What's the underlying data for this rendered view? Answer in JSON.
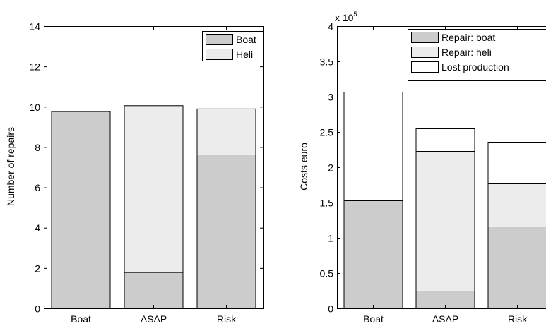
{
  "colors": {
    "boat": "#cccccc",
    "heli": "#ececec",
    "lost": "#ffffff"
  },
  "chart_data": [
    {
      "type": "bar",
      "stacked": true,
      "categories": [
        "Boat",
        "ASAP",
        "Risk"
      ],
      "ylabel": "Number of repairs",
      "ylim": [
        0,
        14
      ],
      "yticks": [
        "0",
        "2",
        "4",
        "6",
        "8",
        "10",
        "12",
        "14"
      ],
      "legend_position": "top-right",
      "series": [
        {
          "name": "Boat",
          "values": [
            9.78,
            1.8,
            7.63
          ]
        },
        {
          "name": "Heli",
          "values": [
            0,
            8.27,
            2.28
          ]
        }
      ]
    },
    {
      "type": "bar",
      "stacked": true,
      "categories": [
        "Boat",
        "ASAP",
        "Risk"
      ],
      "ylabel": "Costs euro",
      "ylim": [
        0,
        400000
      ],
      "yticks": [
        "0",
        "0.5",
        "1",
        "1.5",
        "2",
        "2.5",
        "3",
        "3.5",
        "4"
      ],
      "multiplier_base": "x 10",
      "multiplier_exp": "5",
      "legend_position": "top-right",
      "series": [
        {
          "name": "Repair: boat",
          "values": [
            153000,
            25000,
            116000
          ]
        },
        {
          "name": "Repair: heli",
          "values": [
            0,
            198000,
            61000
          ]
        },
        {
          "name": "Lost production",
          "values": [
            154000,
            32000,
            59000
          ]
        }
      ]
    }
  ]
}
